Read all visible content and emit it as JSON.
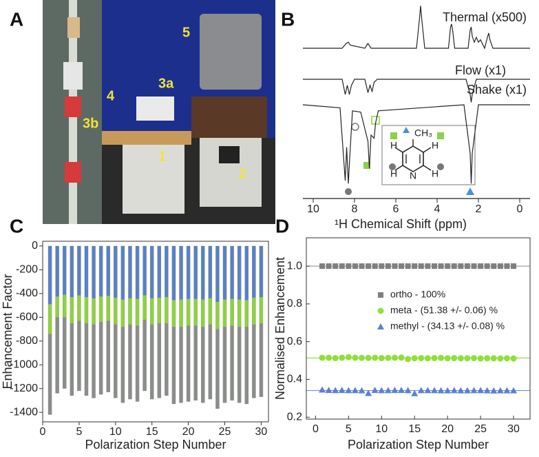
{
  "panel_labels": [
    "A",
    "B",
    "C",
    "D"
  ],
  "photo": {
    "labels": [
      "1",
      "2",
      "3a",
      "3b",
      "4",
      "5"
    ]
  },
  "molecule": {
    "labels": [
      "CH₃",
      "H",
      "H",
      "H",
      "H",
      "N"
    ]
  },
  "chart_data": [
    {
      "type": "line",
      "x_label": "¹H Chemical Shift (ppm)",
      "xlim": [
        10.5,
        -0.5
      ],
      "xticks": [
        10,
        8,
        6,
        4,
        2,
        0
      ],
      "series": [
        {
          "name": "Thermal (x500)",
          "color": "#222",
          "x": [
            10.5,
            8.6,
            8.4,
            8.3,
            8.2,
            7.5,
            7.35,
            7.2,
            5.0,
            4.85,
            4.8,
            4.75,
            4.6,
            3.45,
            3.35,
            3.3,
            3.25,
            3.15,
            2.5,
            2.4,
            2.35,
            2.3,
            2.2,
            2.1,
            2.0,
            1.9,
            1.7,
            1.55,
            1.5,
            1.45,
            1.3,
            -0.5
          ],
          "values": [
            0,
            0,
            0.08,
            0.1,
            0.05,
            0,
            0.08,
            0,
            0,
            0.5,
            0.7,
            0.5,
            0,
            0,
            0.35,
            0.4,
            0.3,
            0,
            0,
            0.3,
            0.35,
            0.2,
            0.1,
            0.18,
            0.1,
            0.14,
            0,
            0.2,
            0.25,
            0.15,
            0,
            0
          ]
        },
        {
          "name": "Flow (x1)",
          "color": "#222",
          "x": [
            10.5,
            8.6,
            8.45,
            8.35,
            8.25,
            8.15,
            8.0,
            7.5,
            7.35,
            7.25,
            7.15,
            7.05,
            6.9,
            2.6,
            2.4,
            2.35,
            2.3,
            2.1,
            -0.5
          ],
          "values": [
            0,
            0,
            -0.25,
            -0.1,
            -0.25,
            -0.1,
            0,
            0,
            -0.22,
            -0.1,
            -0.2,
            -0.05,
            0,
            0,
            -0.25,
            -0.38,
            -0.25,
            0,
            0
          ]
        },
        {
          "name": "Shake (x1)",
          "color": "#222",
          "x": [
            10.5,
            8.7,
            8.45,
            8.38,
            8.3,
            8.22,
            8.1,
            7.7,
            7.35,
            7.28,
            7.2,
            7.05,
            6.98,
            6.85,
            2.7,
            2.4,
            2.35,
            2.3,
            2.0,
            -0.5
          ],
          "values": [
            0,
            -0.05,
            -1.25,
            -0.7,
            -1.3,
            -0.8,
            -0.1,
            -0.12,
            -0.6,
            -1.05,
            -0.5,
            -0.55,
            -0.3,
            -0.1,
            0,
            -0.8,
            -1.3,
            -0.8,
            0,
            0
          ]
        }
      ]
    },
    {
      "type": "bar",
      "x_label": "Polarization Step Number",
      "y_label": "Enhancement Factor",
      "x": [
        1,
        2,
        3,
        4,
        5,
        6,
        7,
        8,
        9,
        10,
        11,
        12,
        13,
        14,
        15,
        16,
        17,
        18,
        19,
        20,
        21,
        22,
        23,
        24,
        25,
        26,
        27,
        28,
        29,
        30
      ],
      "xlim": [
        0,
        31
      ],
      "xticks": [
        0,
        5,
        10,
        15,
        20,
        25,
        30
      ],
      "ylim": [
        -1480,
        40
      ],
      "yticks": [
        0,
        -200,
        -400,
        -600,
        -800,
        -1000,
        -1200,
        -1400
      ],
      "series": [
        {
          "color": "#8a8d8a",
          "values": [
            -1420,
            -1240,
            -1200,
            -1260,
            -1220,
            -1260,
            -1280,
            -1250,
            -1230,
            -1280,
            -1320,
            -1290,
            -1310,
            -1220,
            -1290,
            -1280,
            -1260,
            -1330,
            -1320,
            -1310,
            -1300,
            -1320,
            -1290,
            -1370,
            -1320,
            -1300,
            -1320,
            -1330,
            -1280,
            -1270
          ]
        },
        {
          "color": "#8fd13f",
          "values": [
            -740,
            -600,
            -600,
            -650,
            -630,
            -650,
            -660,
            -640,
            -630,
            -660,
            -680,
            -660,
            -670,
            -620,
            -660,
            -650,
            -650,
            -680,
            -680,
            -670,
            -670,
            -680,
            -660,
            -700,
            -680,
            -670,
            -680,
            -680,
            -660,
            -650
          ]
        },
        {
          "color": "#5b7fc8",
          "values": [
            -490,
            -425,
            -410,
            -430,
            -415,
            -430,
            -440,
            -425,
            -420,
            -435,
            -450,
            -440,
            -445,
            -415,
            -440,
            -435,
            -430,
            -455,
            -450,
            -445,
            -445,
            -450,
            -440,
            -470,
            -450,
            -445,
            -450,
            -455,
            -435,
            -430
          ]
        }
      ]
    },
    {
      "type": "scatter",
      "x_label": "Polarization Step Number",
      "y_label": "Normalised Enhancement",
      "x": [
        1,
        2,
        3,
        4,
        5,
        6,
        7,
        8,
        9,
        10,
        11,
        12,
        13,
        14,
        15,
        16,
        17,
        18,
        19,
        20,
        21,
        22,
        23,
        24,
        25,
        26,
        27,
        28,
        29,
        30
      ],
      "xlim": [
        -1.4,
        32.5
      ],
      "xticks": [
        0,
        5,
        10,
        15,
        20,
        25,
        30
      ],
      "ylim": [
        0.19,
        1.15
      ],
      "yticks": [
        0.2,
        0.4,
        0.6,
        0.8,
        {
          "value": 1,
          "label": "1.0"
        }
      ],
      "reference_lines": {
        "values": [
          1,
          0.5138,
          0.3413
        ],
        "colors": [
          "#a0a0a0",
          "#8fd13f",
          "#6f8fd8"
        ]
      },
      "series": [
        {
          "name": "ortho - 100%",
          "color": "#7f7f7f",
          "marker": "square",
          "values": [
            1,
            1,
            1,
            1,
            1,
            1,
            1,
            1,
            1,
            1,
            1,
            1,
            1,
            1,
            1,
            1,
            1,
            1,
            1,
            1,
            1,
            1,
            1,
            1,
            1,
            1,
            1,
            1,
            1,
            1
          ]
        },
        {
          "name": "meta  - (51.38 +/- 0.06) %",
          "color": "#8fe03a",
          "marker": "circle",
          "values": [
            0.515,
            0.515,
            0.513,
            0.515,
            0.518,
            0.515,
            0.514,
            0.514,
            0.515,
            0.513,
            0.514,
            0.515,
            0.516,
            0.508,
            0.512,
            0.513,
            0.512,
            0.513,
            0.514,
            0.512,
            0.513,
            0.512,
            0.512,
            0.513,
            0.511,
            0.512,
            0.512,
            0.511,
            0.512,
            0.511
          ]
        },
        {
          "name": "methyl  - (34.13 +/- 0.08) %",
          "color": "#5b7fd8",
          "marker": "triangle",
          "values": [
            0.345,
            0.343,
            0.342,
            0.343,
            0.342,
            0.342,
            0.341,
            0.327,
            0.343,
            0.342,
            0.342,
            0.343,
            0.343,
            0.342,
            0.326,
            0.342,
            0.342,
            0.342,
            0.341,
            0.341,
            0.342,
            0.341,
            0.341,
            0.342,
            0.342,
            0.341,
            0.34,
            0.341,
            0.341,
            0.341
          ]
        }
      ]
    }
  ]
}
